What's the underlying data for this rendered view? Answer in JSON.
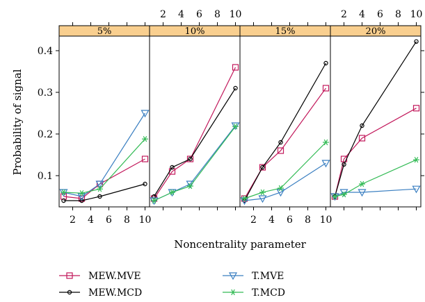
{
  "chart_data": {
    "type": "line",
    "xlabel": "Noncentrality parameter",
    "ylabel": "Probability of signal",
    "x_ticks": [
      2,
      4,
      6,
      8,
      10
    ],
    "y_ticks": [
      0.1,
      0.2,
      0.3,
      0.4
    ],
    "xlim": [
      0.5,
      10.5
    ],
    "ylim": [
      0.025,
      0.435
    ],
    "strip_color": "#f9cf8f",
    "panels": [
      {
        "label": "5%",
        "series": [
          {
            "name": "MEW.MVE",
            "x": [
              1,
              3,
              5,
              10
            ],
            "y": [
              0.05,
              0.045,
              0.08,
              0.14
            ]
          },
          {
            "name": "MEW.MCD",
            "x": [
              1,
              3,
              5,
              10
            ],
            "y": [
              0.04,
              0.04,
              0.05,
              0.08
            ]
          },
          {
            "name": "T.MVE",
            "x": [
              1,
              3,
              5,
              10
            ],
            "y": [
              0.06,
              0.05,
              0.08,
              0.25
            ]
          },
          {
            "name": "T.MCD",
            "x": [
              1,
              3,
              5,
              10
            ],
            "y": [
              0.06,
              0.058,
              0.068,
              0.188
            ]
          }
        ]
      },
      {
        "label": "10%",
        "series": [
          {
            "name": "MEW.MVE",
            "x": [
              1,
              3,
              5,
              10
            ],
            "y": [
              0.045,
              0.11,
              0.14,
              0.36
            ]
          },
          {
            "name": "MEW.MCD",
            "x": [
              1,
              3,
              5,
              10
            ],
            "y": [
              0.05,
              0.12,
              0.14,
              0.31
            ]
          },
          {
            "name": "T.MVE",
            "x": [
              1,
              3,
              5,
              10
            ],
            "y": [
              0.04,
              0.06,
              0.08,
              0.22
            ]
          },
          {
            "name": "T.MCD",
            "x": [
              1,
              3,
              5,
              10
            ],
            "y": [
              0.04,
              0.06,
              0.075,
              0.218
            ]
          }
        ]
      },
      {
        "label": "15%",
        "series": [
          {
            "name": "MEW.MVE",
            "x": [
              1,
              3,
              5,
              10
            ],
            "y": [
              0.045,
              0.12,
              0.16,
              0.31
            ]
          },
          {
            "name": "MEW.MCD",
            "x": [
              1,
              3,
              5,
              10
            ],
            "y": [
              0.04,
              0.12,
              0.18,
              0.37
            ]
          },
          {
            "name": "T.MVE",
            "x": [
              1,
              3,
              5,
              10
            ],
            "y": [
              0.04,
              0.045,
              0.06,
              0.13
            ]
          },
          {
            "name": "T.MCD",
            "x": [
              1,
              3,
              5,
              10
            ],
            "y": [
              0.045,
              0.06,
              0.07,
              0.18
            ]
          }
        ]
      },
      {
        "label": "20%",
        "series": [
          {
            "name": "MEW.MVE",
            "x": [
              1,
              2,
              4,
              10
            ],
            "y": [
              0.05,
              0.14,
              0.19,
              0.262
            ]
          },
          {
            "name": "MEW.MCD",
            "x": [
              1,
              2,
              4,
              10
            ],
            "y": [
              0.05,
              0.127,
              0.22,
              0.422
            ]
          },
          {
            "name": "T.MVE",
            "x": [
              1,
              2,
              4,
              10
            ],
            "y": [
              0.05,
              0.06,
              0.06,
              0.068
            ]
          },
          {
            "name": "T.MCD",
            "x": [
              1,
              2,
              4,
              10
            ],
            "y": [
              0.05,
              0.055,
              0.08,
              0.138
            ]
          }
        ]
      }
    ],
    "legend": [
      {
        "name": "MEW.MVE",
        "color": "#c2185b",
        "marker": "square"
      },
      {
        "name": "T.MVE",
        "color": "#3a7fc1",
        "marker": "triangle-down"
      },
      {
        "name": "MEW.MCD",
        "color": "#000000",
        "marker": "circle"
      },
      {
        "name": "T.MCD",
        "color": "#33bb55",
        "marker": "asterisk"
      }
    ],
    "legend_position": "bottom"
  }
}
